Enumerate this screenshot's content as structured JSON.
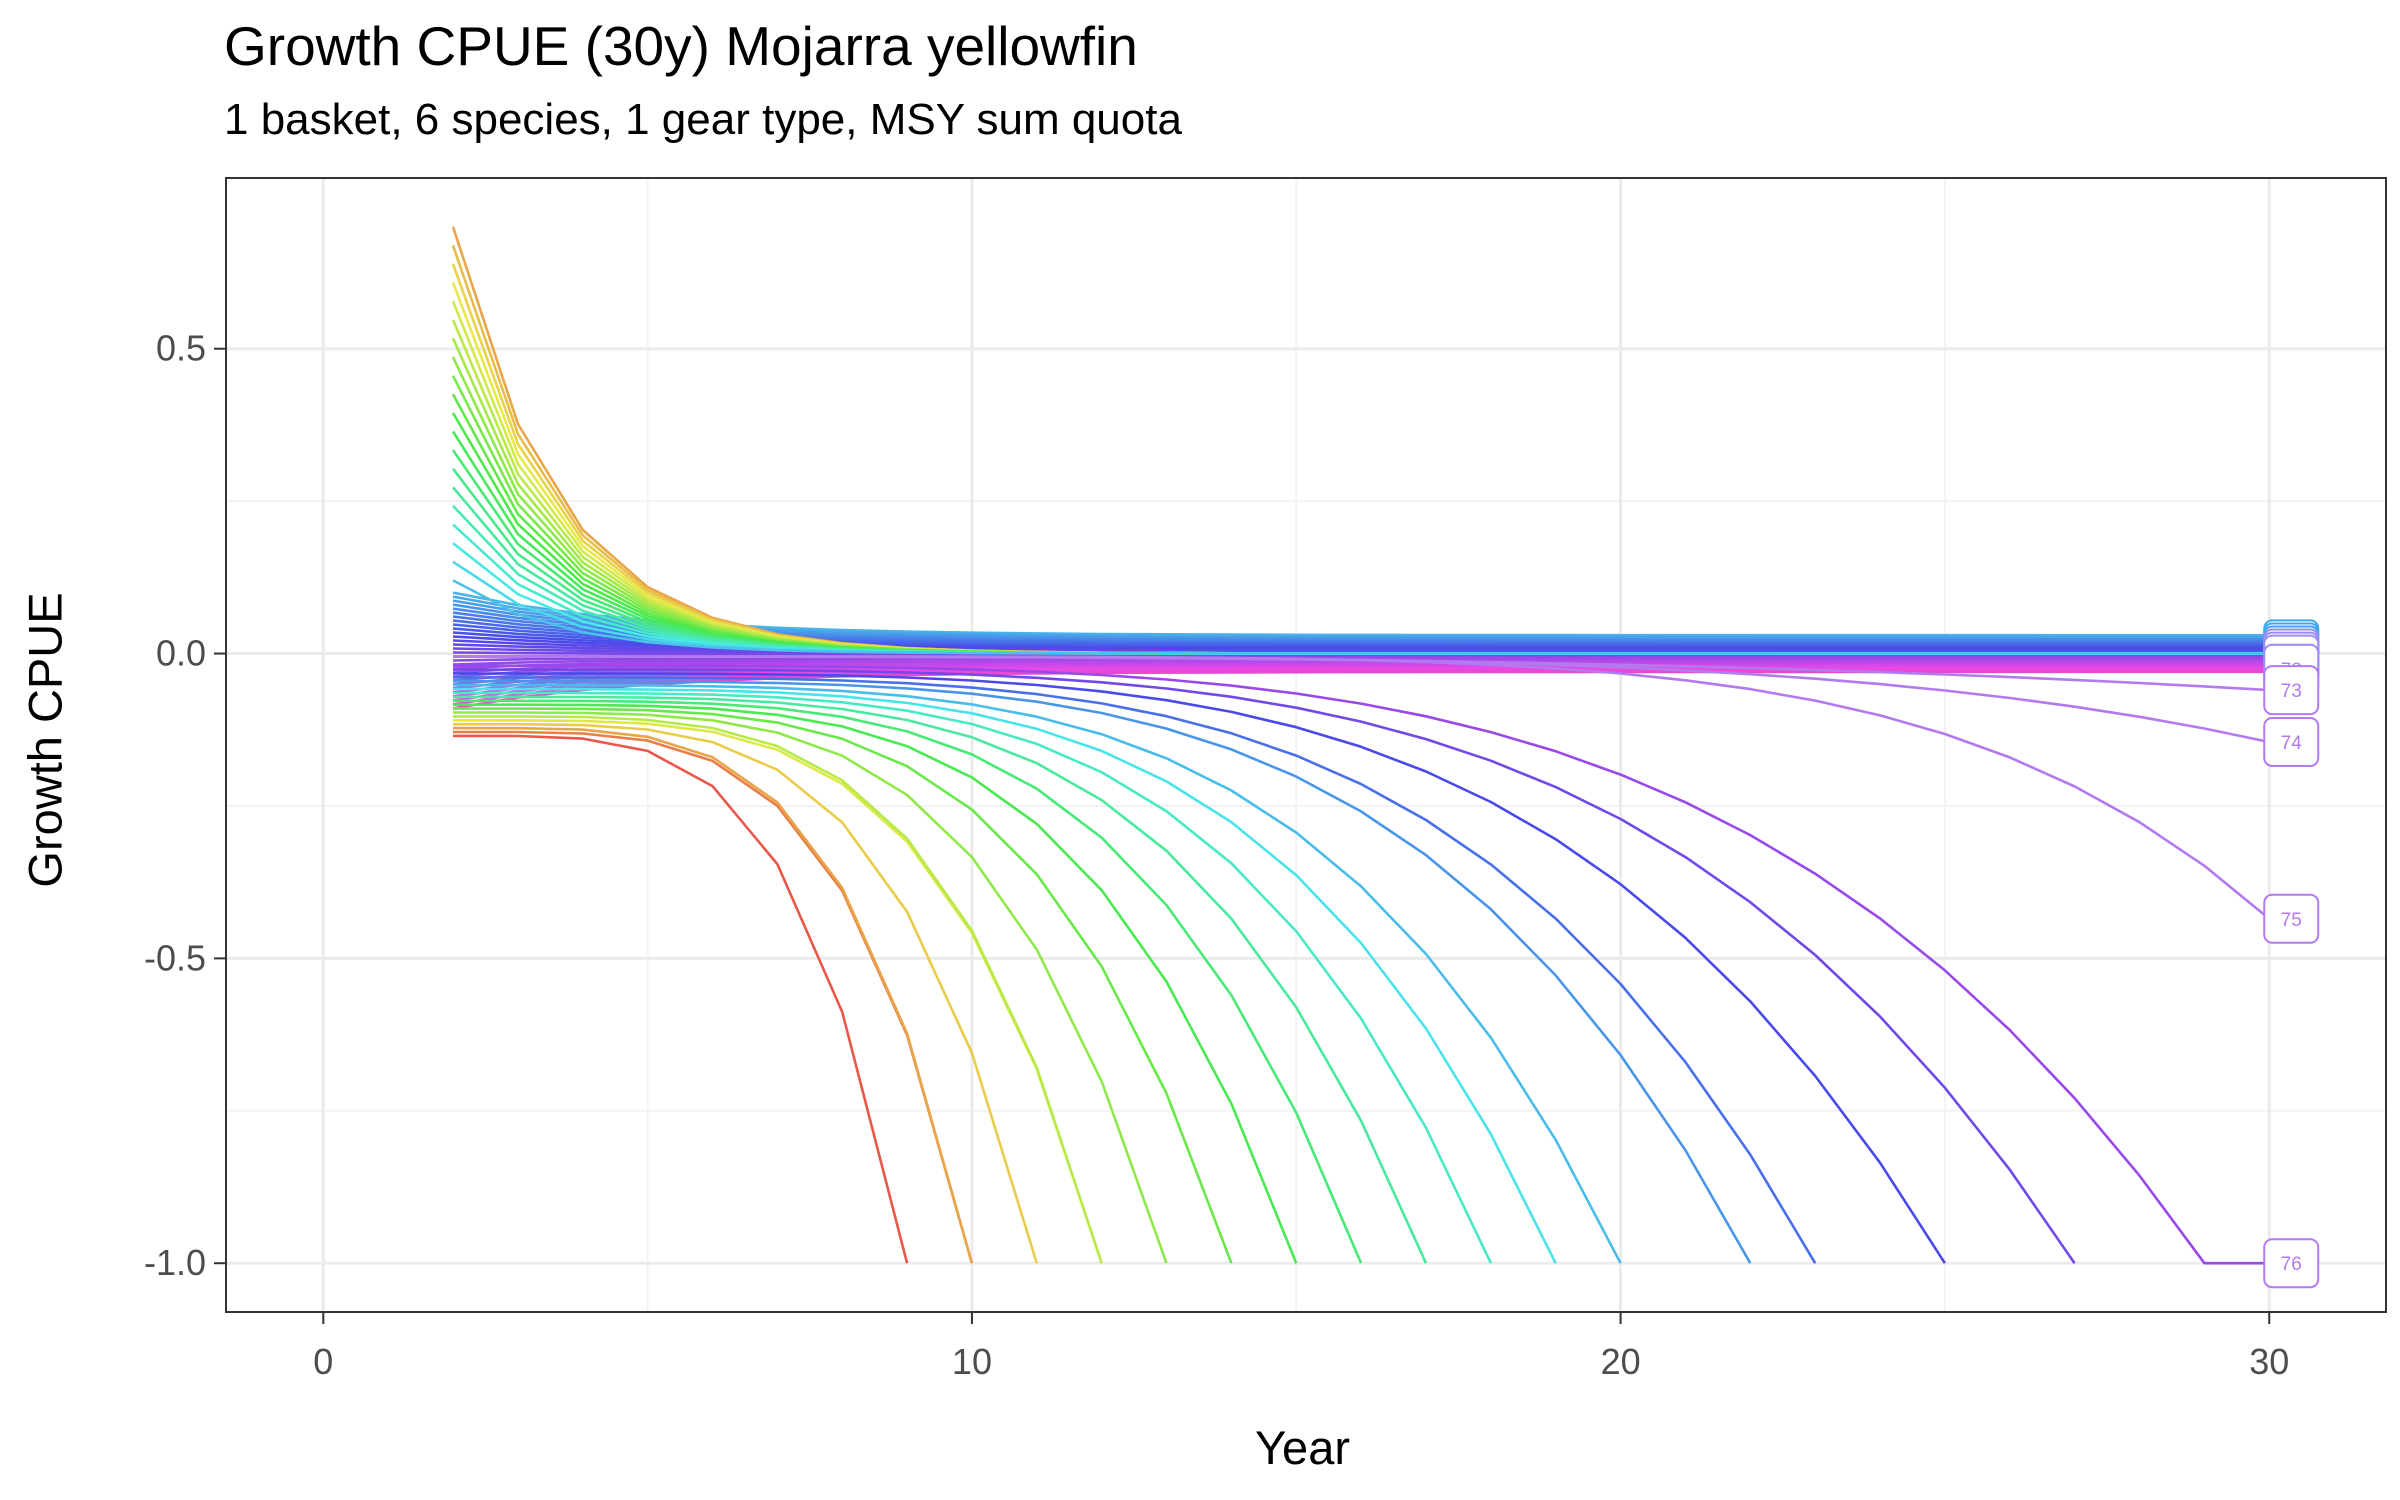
{
  "chart_data": {
    "type": "line",
    "title": "Growth CPUE (30y) Mojarra yellowfin",
    "subtitle": "1 basket, 6 species, 1 gear type, MSY sum quota",
    "xlabel": "Year",
    "ylabel": "Growth CPUE",
    "xlim": [
      -1.5,
      31.8
    ],
    "ylim": [
      -1.08,
      0.78
    ],
    "x_ticks": [
      0,
      10,
      20,
      30
    ],
    "x_tick_labels": [
      "0",
      "10",
      "20",
      "30"
    ],
    "y_ticks": [
      -1.0,
      -0.5,
      0.0,
      0.5
    ],
    "y_tick_labels": [
      "-1.0",
      "-0.5",
      "0.0",
      "0.5"
    ],
    "grid": true,
    "legend": "none",
    "start_year": 2,
    "end_year": 30,
    "bundles": {
      "declining": {
        "count": 20,
        "y_start_range": [
          0.7,
          0.12
        ],
        "peak_year": 2,
        "decay_rate": 0.62,
        "end_value": 0.0
      },
      "stable": {
        "count": 30,
        "y_start_range": [
          0.1,
          -0.09
        ],
        "decay_rate": 0.35,
        "end_value_range": [
          0.03,
          -0.03
        ]
      },
      "collapse_start_range": [
        -0.02,
        -0.135
      ]
    },
    "collapse_end_years": [
      9,
      10,
      10,
      11,
      12,
      12,
      13,
      14,
      15,
      16,
      17,
      18,
      19,
      20,
      22,
      23,
      25,
      27,
      29
    ],
    "labeled_series": [
      {
        "name": "73",
        "end_value": -0.06,
        "color": "#B37AF0"
      },
      {
        "name": "74",
        "end_value": -0.145,
        "color": "#B37AF0"
      },
      {
        "name": "75",
        "end_value": -0.435,
        "color": "#B37AF0"
      },
      {
        "name": "76",
        "end_value": -1.0,
        "color": "#B37AF0"
      }
    ],
    "stacked_end_labels": [
      "",
      "",
      "",
      "",
      "",
      "",
      "73"
    ],
    "colors": {
      "panel_border": "#333333",
      "grid_major": "#EBEBEB",
      "grid_minor": "#F3F3F3",
      "axis_text": "#4D4D4D",
      "label_fill": "#FFFFFF"
    }
  }
}
